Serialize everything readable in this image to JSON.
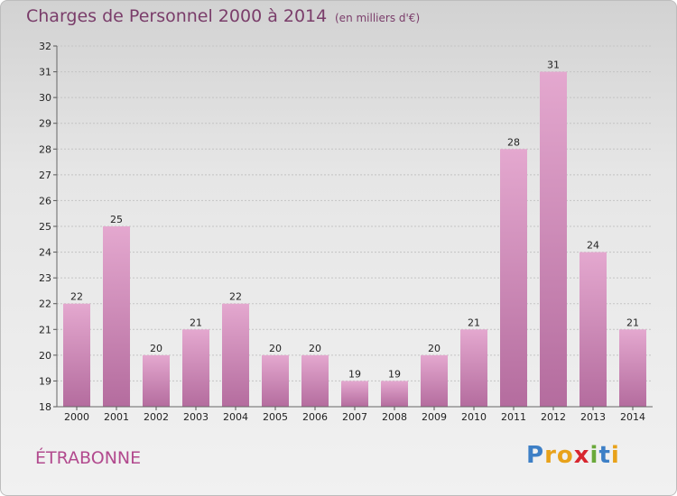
{
  "header": {
    "title": "Charges de Personnel 2000 à 2014",
    "subtitle": "(en milliers d'€)"
  },
  "footer": {
    "commune": "ÉTRABONNE",
    "logo_letters": [
      "P",
      "r",
      "o",
      "x",
      "i",
      "t",
      "i"
    ],
    "logo_colors": [
      "#3d7fc6",
      "#e8a21a",
      "#e8a21a",
      "#d8262f",
      "#6aa93a",
      "#3d7fc6",
      "#e8a21a"
    ]
  },
  "colors": {
    "bar_light": "#e4a8cf",
    "bar_dark": "#b46c9e",
    "accent": "#b24a8e"
  },
  "chart_data": {
    "type": "bar",
    "title": "Charges de Personnel 2000 à 2014",
    "subtitle": "(en milliers d'€)",
    "categories": [
      "2000",
      "2001",
      "2002",
      "2003",
      "2004",
      "2005",
      "2006",
      "2007",
      "2008",
      "2009",
      "2010",
      "2011",
      "2012",
      "2013",
      "2014"
    ],
    "values": [
      22,
      25,
      20,
      21,
      22,
      20,
      20,
      19,
      19,
      20,
      21,
      28,
      31,
      24,
      21
    ],
    "ylim": [
      18,
      32
    ],
    "yticks": [
      18,
      19,
      20,
      21,
      22,
      23,
      24,
      25,
      26,
      27,
      28,
      29,
      30,
      31,
      32
    ],
    "grid": true,
    "data_labels": true
  }
}
